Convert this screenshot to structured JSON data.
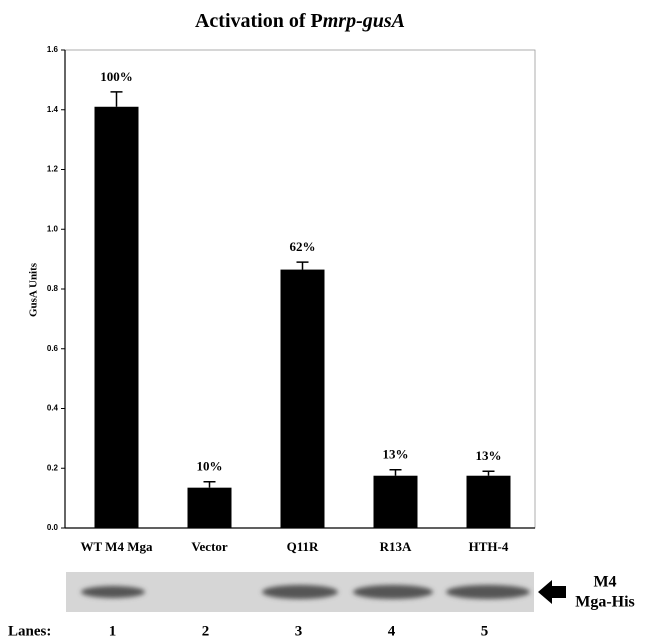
{
  "chart_data": {
    "type": "bar",
    "title": "Activation of P",
    "title_italic": "mrp-gusA",
    "ylabel": "GusA Units",
    "categories": [
      "WT M4 Mga",
      "Vector",
      "Q11R",
      "R13A",
      "HTH-4"
    ],
    "values": [
      1.41,
      0.135,
      0.865,
      0.175,
      0.175
    ],
    "errors": [
      0.05,
      0.02,
      0.025,
      0.02,
      0.015
    ],
    "annotations": [
      "100%",
      "10%",
      "62%",
      "13%",
      "13%"
    ],
    "color": "#000000",
    "ylim": [
      0,
      1.6
    ],
    "yticks": [
      {
        "value": 0,
        "label": "0.0"
      },
      0.2,
      0.4,
      0.6,
      0.8,
      {
        "value": 1,
        "label": "1.0"
      },
      1.2,
      1.4,
      1.6
    ]
  },
  "blot": {
    "label_top": "M4",
    "label_bottom": "Mga-His",
    "lanes_label": "Lanes:",
    "lanes": [
      "1",
      "2",
      "3",
      "4",
      "5"
    ]
  }
}
